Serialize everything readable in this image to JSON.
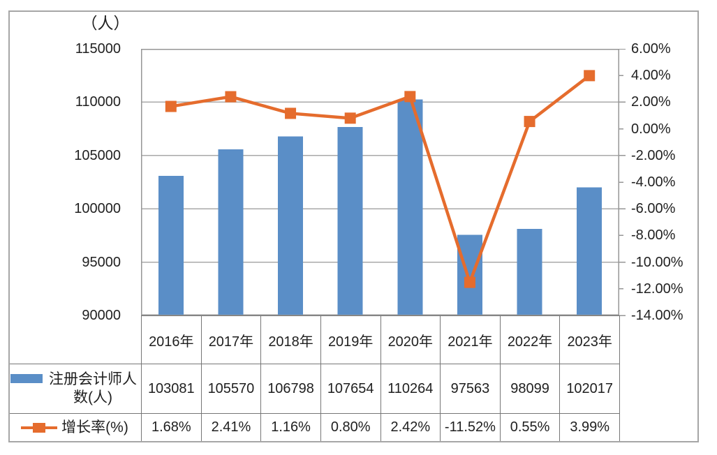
{
  "chart_data": {
    "type": "bar+line combo with data table",
    "categories": [
      "2016年",
      "2017年",
      "2018年",
      "2019年",
      "2020年",
      "2021年",
      "2022年",
      "2023年"
    ],
    "series": [
      {
        "name": "注册会计师人数(人)",
        "type": "bar",
        "axis": "left",
        "values": [
          103081,
          105570,
          106798,
          107654,
          110264,
          97563,
          98099,
          102017
        ],
        "value_labels": [
          "103081",
          "105570",
          "106798",
          "107654",
          "110264",
          "97563",
          "98099",
          "102017"
        ]
      },
      {
        "name": "增长率(%)",
        "type": "line",
        "axis": "right",
        "values": [
          1.68,
          2.41,
          1.16,
          0.8,
          2.42,
          -11.52,
          0.55,
          3.99
        ],
        "value_labels": [
          "1.68%",
          "2.41%",
          "1.16%",
          "0.80%",
          "2.42%",
          "-11.52%",
          "0.55%",
          "3.99%"
        ]
      }
    ],
    "left_axis": {
      "title": "（人）",
      "min": 90000,
      "max": 115000,
      "step": 5000,
      "tick_labels": [
        "115000",
        "110000",
        "105000",
        "100000",
        "95000",
        "90000"
      ]
    },
    "right_axis": {
      "min": -14,
      "max": 6,
      "step": 2,
      "tick_labels": [
        "6.00%",
        "4.00%",
        "2.00%",
        "0.00%",
        "-2.00%",
        "-4.00%",
        "-6.00%",
        "-8.00%",
        "-10.00%",
        "-12.00%",
        "-14.00%"
      ]
    },
    "grid": true,
    "legend_position": "table-left",
    "colors": {
      "bar": "#5A8EC7",
      "line": "#E56C2D",
      "gridline": "#a9a9a9",
      "plot_border": "#969696",
      "table_border": "#767676",
      "outer_border": "#a6a6a6",
      "text": "#1f1f1f"
    }
  }
}
